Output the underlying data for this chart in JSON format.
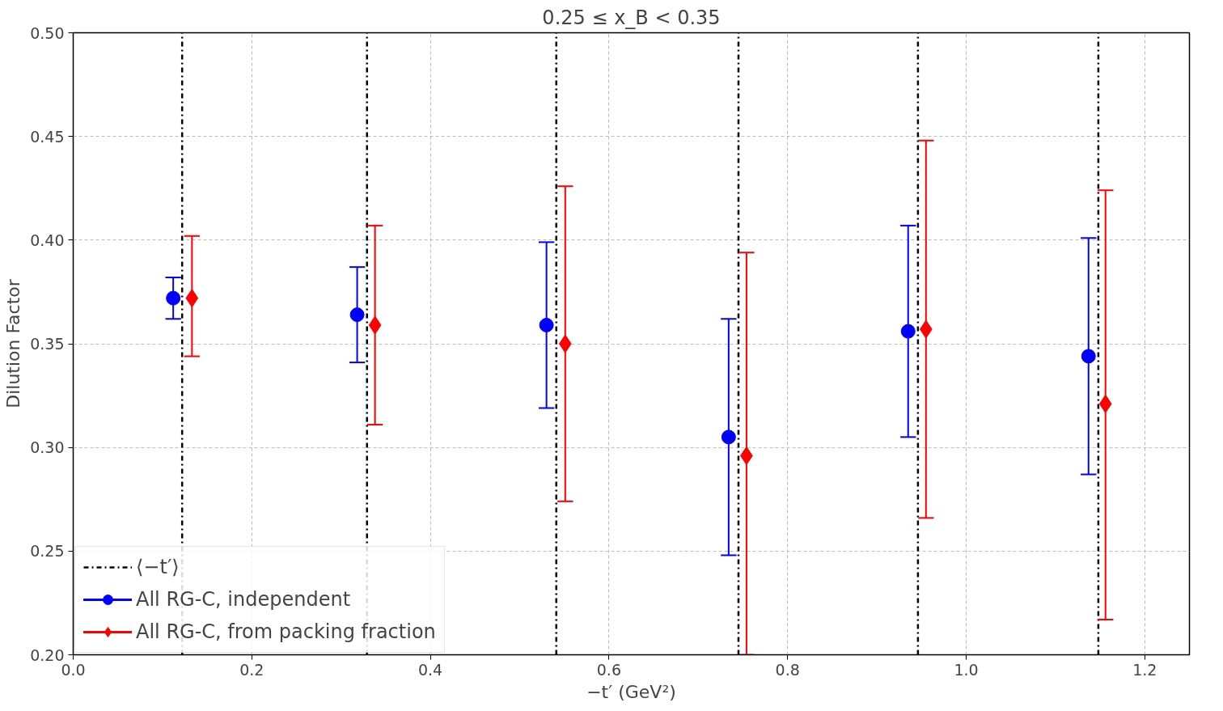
{
  "chart_data": {
    "type": "scatter",
    "title": "0.25 ≤ x_B < 0.35",
    "xlabel": "−t′ (GeV²)",
    "ylabel": "Dilution Factor",
    "xlim": [
      0,
      1.25
    ],
    "ylim": [
      0.2,
      0.5
    ],
    "xticks": [
      {
        "value": 0,
        "label": "0.0"
      },
      0.2,
      0.4,
      0.6,
      0.8,
      {
        "value": 1,
        "label": "1.0"
      },
      1.2
    ],
    "yticks": [
      {
        "value": 0.2,
        "label": "0.20"
      },
      0.25,
      {
        "value": 0.3,
        "label": "0.30"
      },
      0.35,
      {
        "value": 0.4,
        "label": "0.40"
      },
      0.45,
      {
        "value": 0.5,
        "label": "0.50"
      }
    ],
    "grid": true,
    "legend": "bottom left",
    "series": [
      {
        "name": "All RG-C, independent",
        "color": "#0000ff",
        "marker": "circle",
        "x": [
          0.112,
          0.318,
          0.53,
          0.734,
          0.935,
          1.137
        ],
        "values": [
          0.372,
          0.364,
          0.359,
          0.305,
          0.356,
          0.344
        ],
        "errors": [
          [
            0.362,
            0.382
          ],
          [
            0.341,
            0.387
          ],
          [
            0.319,
            0.399
          ],
          [
            0.248,
            0.362
          ],
          [
            0.305,
            0.407
          ],
          [
            0.287,
            0.401
          ]
        ]
      },
      {
        "name": "All RG-C, from packing fraction",
        "color": "#ff0000",
        "marker": "diamond",
        "x": [
          0.133,
          0.338,
          0.551,
          0.754,
          0.955,
          1.156
        ],
        "values": [
          0.372,
          0.359,
          0.35,
          0.296,
          0.357,
          0.321
        ],
        "errors": [
          [
            0.344,
            0.402
          ],
          [
            0.311,
            0.407
          ],
          [
            0.274,
            0.426
          ],
          [
            0.2,
            0.394
          ],
          [
            0.266,
            0.448
          ],
          [
            0.217,
            0.424
          ]
        ]
      }
    ],
    "ref_lines": [
      {
        "axis": "x",
        "value": 0.122,
        "label": "⟨−t′⟩",
        "color": "#000000",
        "line_style": "dashdot"
      },
      {
        "axis": "x",
        "value": 0.329,
        "color": "#000000",
        "line_style": "dashdot"
      },
      {
        "axis": "x",
        "value": 0.541,
        "color": "#000000",
        "line_style": "dashdot"
      },
      {
        "axis": "x",
        "value": 0.745,
        "color": "#000000",
        "line_style": "dashdot"
      },
      {
        "axis": "x",
        "value": 0.946,
        "color": "#000000",
        "line_style": "dashdot"
      },
      {
        "axis": "x",
        "value": 1.148,
        "color": "#000000",
        "line_style": "dashdot"
      }
    ]
  }
}
